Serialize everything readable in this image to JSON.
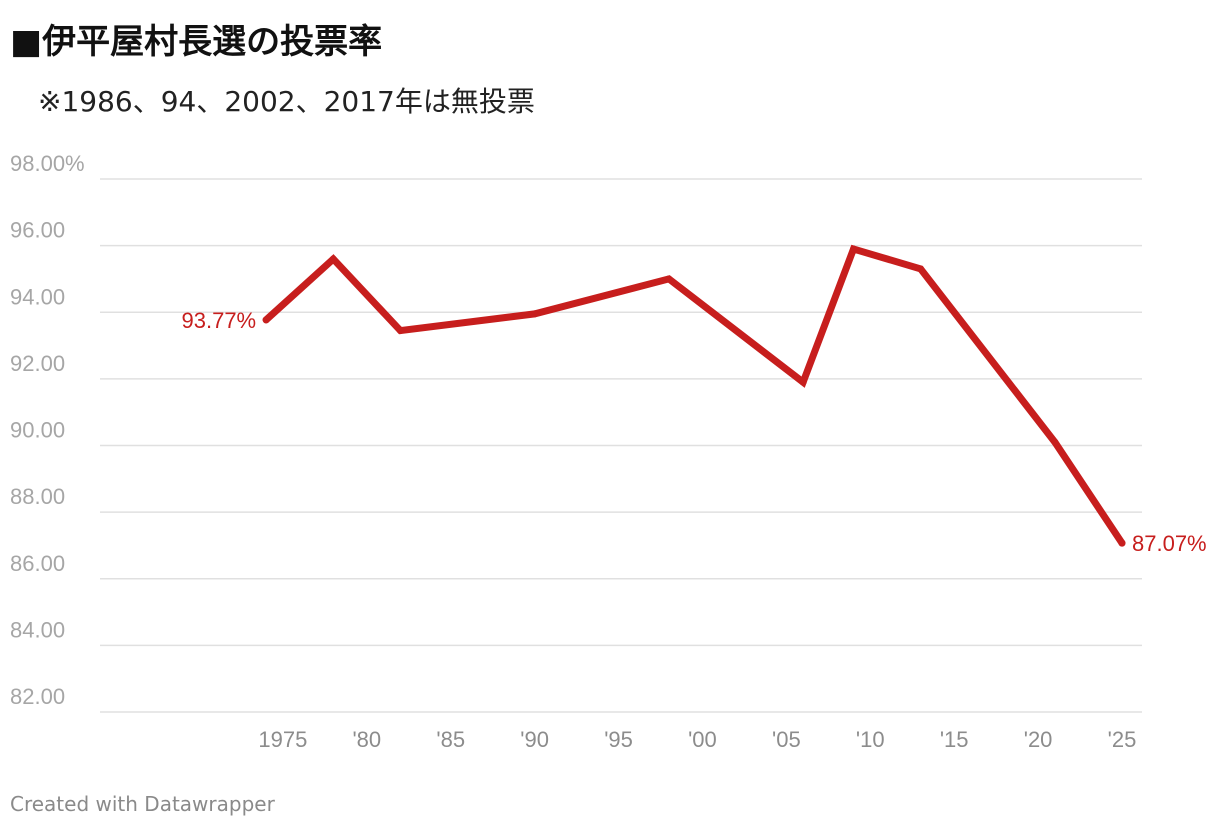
{
  "title": "■伊平屋村長選の投票率",
  "subtitle": "※1986、94、2002、2017年は無投票",
  "credit": "Created with Datawrapper",
  "colors": {
    "line": "#c71e1d",
    "grid": "#e0e0e0",
    "ytick": "#a6a6a6",
    "xtick": "#8c8c8c"
  },
  "chart_data": {
    "type": "line",
    "title": "■伊平屋村長選の投票率",
    "subtitle": "※1986、94、2002、2017年は無投票",
    "xlabel": "",
    "ylabel": "",
    "ylim": [
      82,
      98
    ],
    "xlim": [
      1970,
      2025
    ],
    "grid": true,
    "yticks": [
      82,
      84,
      86,
      88,
      90,
      92,
      94,
      96,
      98
    ],
    "ytick_labels": [
      "82.00",
      "84.00",
      "86.00",
      "88.00",
      "90.00",
      "92.00",
      "94.00",
      "96.00",
      "98.00%"
    ],
    "xticks": [
      1975,
      1980,
      1985,
      1990,
      1995,
      2000,
      2005,
      2010,
      2015,
      2020,
      2025
    ],
    "xtick_labels": [
      "1975",
      "'80",
      "'85",
      "'90",
      "'95",
      "'00",
      "'05",
      "'10",
      "'15",
      "'20",
      "'25"
    ],
    "series": [
      {
        "x": [
          1974,
          1978,
          1982,
          1990,
          1998,
          2006,
          2009,
          2013,
          2021,
          2025
        ],
        "y": [
          93.77,
          95.6,
          93.45,
          93.95,
          95.0,
          91.9,
          95.9,
          95.3,
          90.1,
          87.07
        ]
      }
    ],
    "annotations": [
      {
        "x": 1974,
        "y": 93.77,
        "text": "93.77%",
        "position": "left"
      },
      {
        "x": 2025,
        "y": 87.07,
        "text": "87.07%",
        "position": "right"
      }
    ]
  }
}
